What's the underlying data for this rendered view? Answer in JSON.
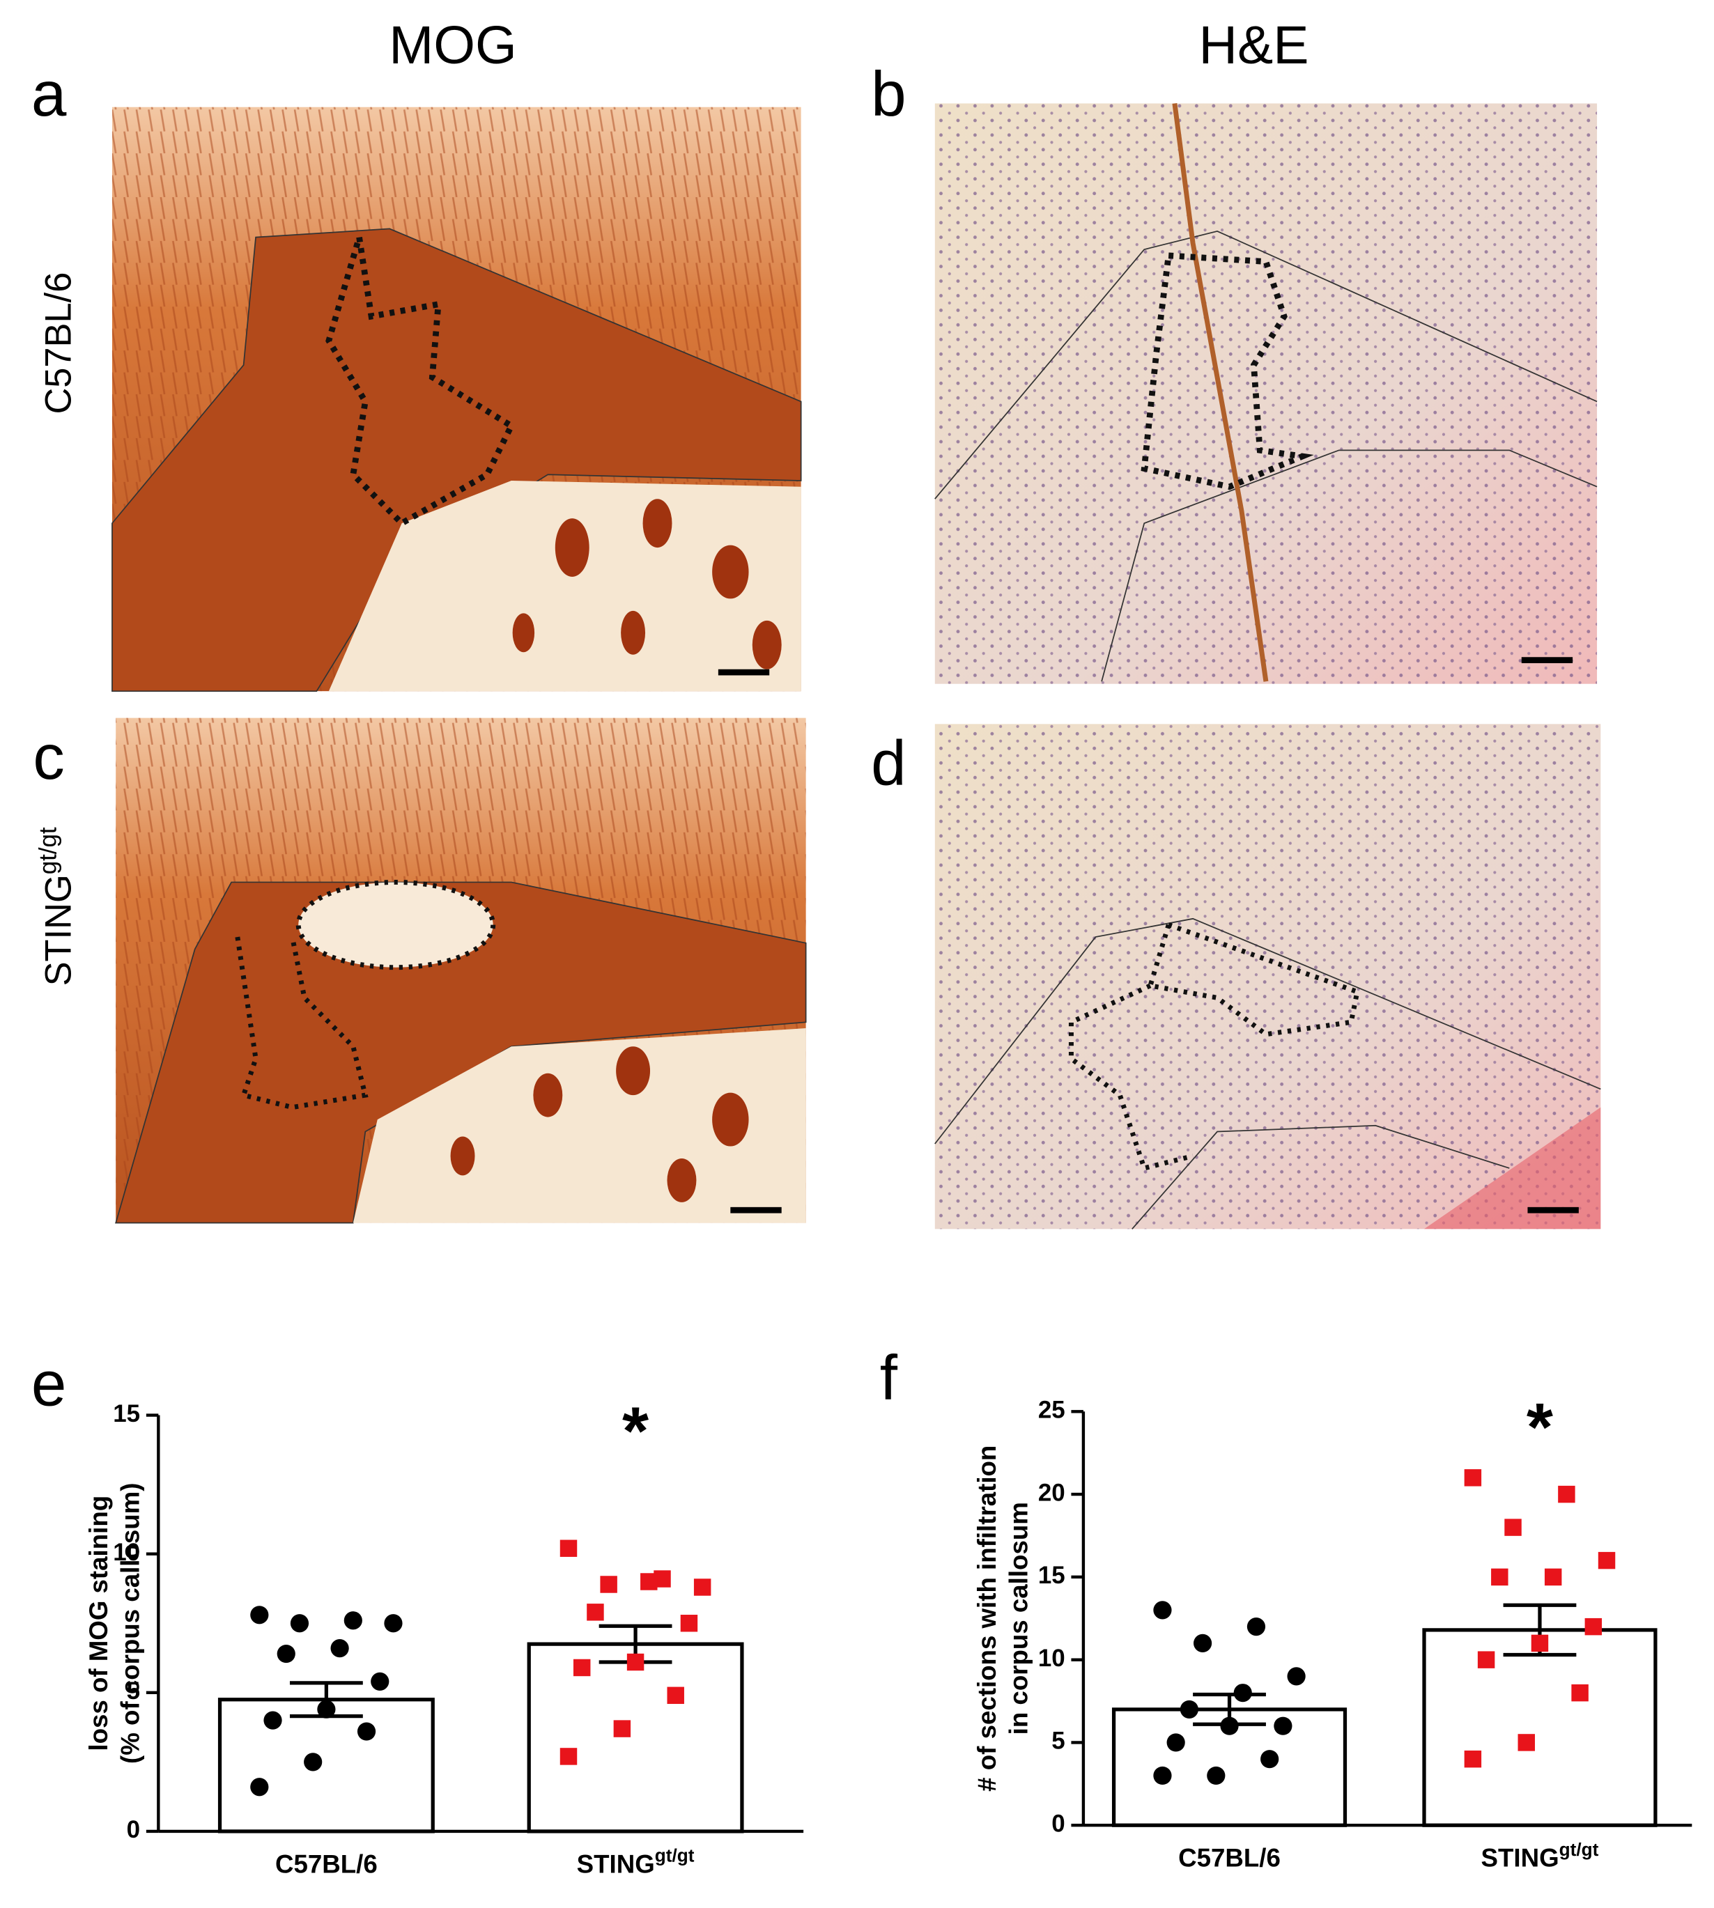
{
  "figure": {
    "column_titles": [
      "MOG",
      "H&E"
    ],
    "panel_letters": [
      "a",
      "b",
      "c",
      "d",
      "e",
      "f"
    ],
    "row_labels": [
      {
        "text": "C57BL/6",
        "sup": null
      },
      {
        "text": "STING",
        "sup": "gt/gt"
      }
    ]
  },
  "chart_data": [
    {
      "type": "bar",
      "ylabel": [
        "loss of MOG staining",
        "(% of corpus callosum)"
      ],
      "categories": [
        "C57BL/6",
        "STING"
      ],
      "category_superscripts": [
        null,
        "gt/gt"
      ],
      "values": [
        4.75,
        6.75
      ],
      "errors": [
        0.6,
        0.65
      ],
      "color": "#ffffff",
      "points": [
        [
          7.8,
          7.6,
          7.5,
          7.5,
          6.6,
          6.4,
          5.4,
          4.4,
          4.0,
          3.6,
          2.5,
          1.6
        ],
        [
          10.2,
          9.1,
          8.9,
          8.8,
          9.0,
          7.9,
          7.5,
          6.1,
          5.9,
          4.9,
          3.7,
          2.7
        ]
      ],
      "point_colors": [
        "#000000",
        "#e8141b"
      ],
      "point_markers": [
        "circle",
        "square"
      ],
      "annotation": {
        "text": "*",
        "x": 1
      },
      "ylim": [
        0,
        15
      ],
      "yticks": [
        0,
        5,
        10,
        15
      ]
    },
    {
      "type": "bar",
      "ylabel": [
        "# of sections with infiltration",
        "in corpus callosum"
      ],
      "categories": [
        "C57BL/6",
        "STING"
      ],
      "category_superscripts": [
        null,
        "gt/gt"
      ],
      "values": [
        7.0,
        11.8
      ],
      "errors": [
        0.9,
        1.5
      ],
      "color": "#ffffff",
      "points": [
        [
          13,
          12,
          11,
          9,
          8,
          7,
          6,
          6,
          5,
          4,
          3,
          3
        ],
        [
          21,
          20,
          18,
          16,
          15,
          15,
          12,
          11,
          10,
          8,
          5,
          4
        ]
      ],
      "point_colors": [
        "#000000",
        "#e8141b"
      ],
      "point_markers": [
        "circle",
        "square"
      ],
      "annotation": {
        "text": "*",
        "x": 1
      },
      "ylim": [
        0,
        25
      ],
      "yticks": [
        0,
        5,
        10,
        15,
        20,
        25
      ]
    }
  ]
}
